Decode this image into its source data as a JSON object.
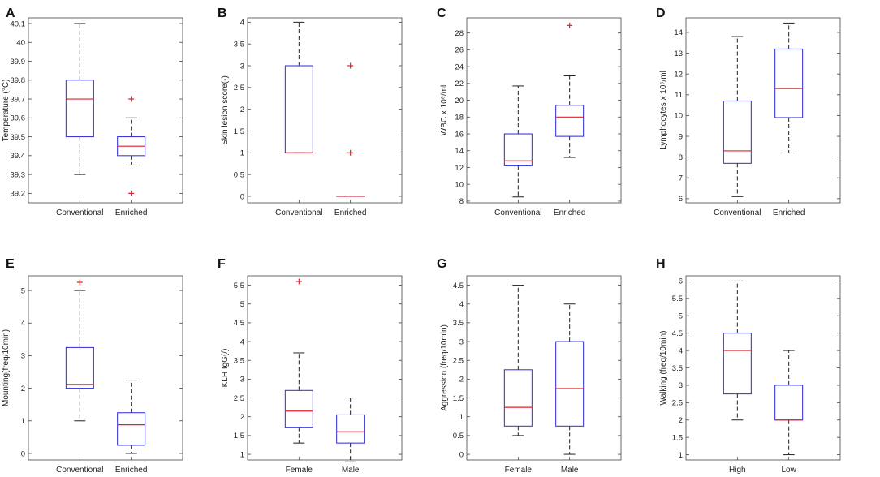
{
  "colors": {
    "box": "#2b2bd6",
    "median": "#e0202a",
    "whisker": "#222222",
    "outlier": "#e0202a",
    "frame": "#444444"
  },
  "chart_data": [
    {
      "panel": "A",
      "type": "box",
      "ylabel": "Temperature (°C)",
      "ylim": [
        39.15,
        40.13
      ],
      "yticks": [
        39.2,
        39.3,
        39.4,
        39.5,
        39.6,
        39.7,
        39.8,
        39.9,
        40,
        40.1
      ],
      "ytick_labels": [
        "39.2",
        "39.3",
        "39.4",
        "39.5",
        "39.6",
        "39.7",
        "39.8",
        "39.9",
        "40",
        "40.1"
      ],
      "categories": [
        "Conventional",
        "Enriched"
      ],
      "boxes": [
        {
          "q1": 39.5,
          "median": 39.7,
          "q3": 39.8,
          "whisker_low": 39.3,
          "whisker_high": 40.1,
          "outliers": []
        },
        {
          "q1": 39.4,
          "median": 39.45,
          "q3": 39.5,
          "whisker_low": 39.35,
          "whisker_high": 39.6,
          "outliers": [
            39.7,
            39.2
          ]
        }
      ]
    },
    {
      "panel": "B",
      "type": "box",
      "ylabel": "Skin lesion score(-)",
      "ylim": [
        -0.15,
        4.1
      ],
      "yticks": [
        0,
        0.5,
        1,
        1.5,
        2,
        2.5,
        3,
        3.5,
        4
      ],
      "ytick_labels": [
        "0",
        "0.5",
        "1",
        "1.5",
        "2",
        "2.5",
        "3",
        "3.5",
        "4"
      ],
      "categories": [
        "Conventional",
        "Enriched"
      ],
      "boxes": [
        {
          "q1": 1,
          "median": 1,
          "q3": 3,
          "whisker_low": 1,
          "whisker_high": 4,
          "outliers": []
        },
        {
          "q1": 0,
          "median": 0,
          "q3": 0,
          "whisker_low": 0,
          "whisker_high": 0,
          "outliers": [
            3,
            1
          ]
        }
      ]
    },
    {
      "panel": "C",
      "type": "box",
      "ylabel": "WBC x 10⁶/ml",
      "ylim": [
        7.8,
        29.8
      ],
      "yticks": [
        8,
        10,
        12,
        14,
        16,
        18,
        20,
        22,
        24,
        26,
        28
      ],
      "ytick_labels": [
        "8",
        "10",
        "12",
        "14",
        "16",
        "18",
        "20",
        "22",
        "24",
        "26",
        "28"
      ],
      "categories": [
        "Conventional",
        "Enriched"
      ],
      "boxes": [
        {
          "q1": 12.2,
          "median": 12.8,
          "q3": 16,
          "whisker_low": 8.5,
          "whisker_high": 21.7,
          "outliers": []
        },
        {
          "q1": 15.7,
          "median": 18,
          "q3": 19.4,
          "whisker_low": 13.2,
          "whisker_high": 22.9,
          "outliers": [
            28.9
          ]
        }
      ]
    },
    {
      "panel": "D",
      "type": "box",
      "ylabel": "Lymphocytes x 10⁶/ml",
      "ylim": [
        5.8,
        14.7
      ],
      "yticks": [
        6,
        7,
        8,
        9,
        10,
        11,
        12,
        13,
        14
      ],
      "ytick_labels": [
        "6",
        "7",
        "8",
        "9",
        "10",
        "11",
        "12",
        "13",
        "14"
      ],
      "categories": [
        "Conventional",
        "Enriched"
      ],
      "boxes": [
        {
          "q1": 7.7,
          "median": 8.3,
          "q3": 10.7,
          "whisker_low": 6.1,
          "whisker_high": 13.8,
          "outliers": []
        },
        {
          "q1": 9.9,
          "median": 11.3,
          "q3": 13.2,
          "whisker_low": 8.2,
          "whisker_high": 14.45,
          "outliers": []
        }
      ]
    },
    {
      "panel": "E",
      "type": "box",
      "ylabel": "Mounting(freq/10min)",
      "ylim": [
        -0.2,
        5.45
      ],
      "yticks": [
        0,
        1,
        2,
        3,
        4,
        5
      ],
      "ytick_labels": [
        "0",
        "1",
        "2",
        "3",
        "4",
        "5"
      ],
      "categories": [
        "Conventional",
        "Enriched"
      ],
      "boxes": [
        {
          "q1": 2,
          "median": 2.12,
          "q3": 3.25,
          "whisker_low": 1,
          "whisker_high": 5,
          "outliers": [
            5.25
          ]
        },
        {
          "q1": 0.25,
          "median": 0.88,
          "q3": 1.25,
          "whisker_low": 0,
          "whisker_high": 2.25,
          "outliers": []
        }
      ]
    },
    {
      "panel": "F",
      "type": "box",
      "ylabel": "KLH IgG(/)",
      "ylim": [
        0.85,
        5.75
      ],
      "yticks": [
        1,
        1.5,
        2,
        2.5,
        3,
        3.5,
        4,
        4.5,
        5,
        5.5
      ],
      "ytick_labels": [
        "1",
        "1.5",
        "2",
        "2.5",
        "3",
        "3.5",
        "4",
        "4.5",
        "5",
        "5.5"
      ],
      "categories": [
        "Female",
        "Male"
      ],
      "boxes": [
        {
          "q1": 1.72,
          "median": 2.15,
          "q3": 2.7,
          "whisker_low": 1.3,
          "whisker_high": 3.7,
          "outliers": [
            5.6
          ]
        },
        {
          "q1": 1.3,
          "median": 1.6,
          "q3": 2.05,
          "whisker_low": 0.8,
          "whisker_high": 2.5,
          "outliers": []
        }
      ]
    },
    {
      "panel": "G",
      "type": "box",
      "ylabel": "Aggression (freq/10min)",
      "ylim": [
        -0.15,
        4.75
      ],
      "yticks": [
        0,
        0.5,
        1,
        1.5,
        2,
        2.5,
        3,
        3.5,
        4,
        4.5
      ],
      "ytick_labels": [
        "0",
        "0.5",
        "1",
        "1.5",
        "2",
        "2.5",
        "3",
        "3.5",
        "4",
        "4.5"
      ],
      "categories": [
        "Female",
        "Male"
      ],
      "boxes": [
        {
          "q1": 0.75,
          "median": 1.25,
          "q3": 2.25,
          "whisker_low": 0.5,
          "whisker_high": 4.5,
          "outliers": []
        },
        {
          "q1": 0.75,
          "median": 1.75,
          "q3": 3,
          "whisker_low": 0,
          "whisker_high": 4,
          "outliers": []
        }
      ]
    },
    {
      "panel": "H",
      "type": "box",
      "ylabel": "Walking (freq/10min)",
      "ylim": [
        0.85,
        6.15
      ],
      "yticks": [
        1,
        1.5,
        2,
        2.5,
        3,
        3.5,
        4,
        4.5,
        5,
        5.5,
        6
      ],
      "ytick_labels": [
        "1",
        "1.5",
        "2",
        "2.5",
        "3",
        "3.5",
        "4",
        "4.5",
        "5",
        "5.5",
        "6"
      ],
      "categories": [
        "High",
        "Low"
      ],
      "boxes": [
        {
          "q1": 2.75,
          "median": 4,
          "q3": 4.5,
          "whisker_low": 2,
          "whisker_high": 6,
          "outliers": []
        },
        {
          "q1": 2,
          "median": 2,
          "q3": 3,
          "whisker_low": 1,
          "whisker_high": 4,
          "outliers": []
        }
      ]
    }
  ]
}
